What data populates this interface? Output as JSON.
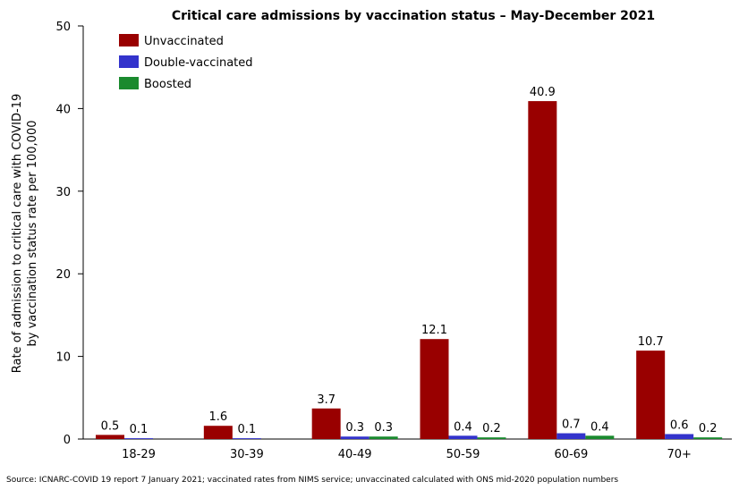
{
  "chart_data": {
    "type": "bar",
    "title": "Critical care admissions by vaccination status – May-December 2021",
    "ylabel_line1": "Rate of admission to critical care with COVID-19",
    "ylabel_line2": "by vaccination status rate per 100,000",
    "xlabel": "",
    "ylim": [
      0,
      50
    ],
    "yticks": [
      0,
      10,
      20,
      30,
      40,
      50
    ],
    "categories": [
      "18-29",
      "30-39",
      "40-49",
      "50-59",
      "60-69",
      "70+"
    ],
    "series": [
      {
        "name": "Unvaccinated",
        "color": "#990000",
        "values": [
          0.5,
          1.6,
          3.7,
          12.1,
          40.9,
          10.7
        ]
      },
      {
        "name": "Double-vaccinated",
        "color": "#3333cc",
        "values": [
          0.1,
          0.1,
          0.3,
          0.4,
          0.7,
          0.6
        ]
      },
      {
        "name": "Boosted",
        "color": "#1a8a2e",
        "values": [
          null,
          null,
          0.3,
          0.2,
          0.4,
          0.2
        ]
      }
    ],
    "data_labels": [
      [
        "0.5",
        "1.6",
        "3.7",
        "12.1",
        "40.9",
        "10.7"
      ],
      [
        "0.1",
        "0.1",
        "0.3",
        "0.4",
        "0.7",
        "0.6"
      ],
      [
        "",
        "",
        "0.3",
        "0.2",
        "0.4",
        "0.2"
      ]
    ],
    "legend_position": "top-left",
    "grid": false,
    "source": "Source: ICNARC-COVID 19 report 7 January 2021; vaccinated rates from NIMS service; unvaccinated calculated with ONS mid-2020 population numbers"
  }
}
